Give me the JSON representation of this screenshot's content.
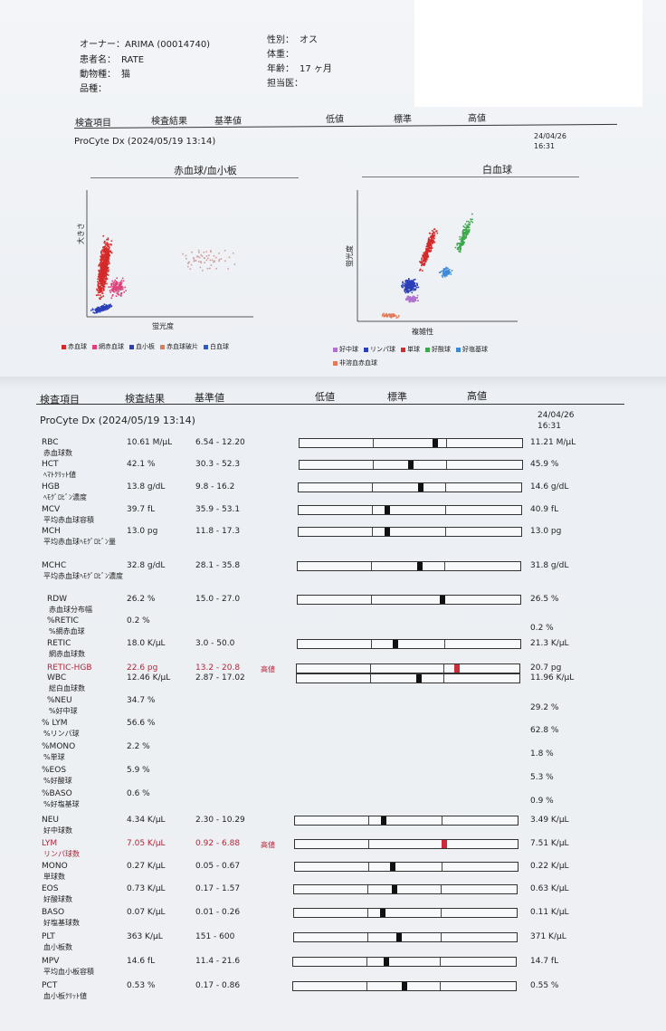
{
  "patient": {
    "owner_label": "オーナー：",
    "owner_value": "ARIMA (00014740)",
    "name_label": "患者名：",
    "name_value": "RATE",
    "species_label": "動物種：",
    "species_value": "猫",
    "breed_label": "品種：",
    "breed_value": "",
    "sex_label": "性別：",
    "sex_value": "オス",
    "weight_label": "体重：",
    "weight_value": "",
    "age_label": "年齢：",
    "age_value": "17 ヶ月",
    "doctor_label": "担当医：",
    "doctor_value": ""
  },
  "header": {
    "col_item": "検査項目",
    "col_result": "検査結果",
    "col_reference": "基準値",
    "col_low": "低値",
    "col_normal": "標準",
    "col_high": "高値",
    "device": "ProCyte Dx (2024/05/19 13:14)",
    "date": "24/04/26",
    "time": "16:31"
  },
  "scatter": {
    "rbc_title": "赤血球/血小板",
    "rbc_ylabel": "大きさ",
    "rbc_xlabel": "蛍光度",
    "wbc_title": "白血球",
    "wbc_ylabel": "蛍光度",
    "wbc_xlabel": "複雑性",
    "rbc_legend": [
      {
        "label": "赤血球",
        "color": "#d42a2a"
      },
      {
        "label": "網赤血球",
        "color": "#e0407a"
      },
      {
        "label": "血小板",
        "color": "#2a3fb8"
      },
      {
        "label": "赤血球破片",
        "color": "#e07a5a"
      },
      {
        "label": "白血球",
        "color": "#2a5ad0"
      }
    ],
    "wbc_legend": [
      {
        "label": "好中球",
        "color": "#b070d0"
      },
      {
        "label": "リンパ球",
        "color": "#2a3fb8"
      },
      {
        "label": "単球",
        "color": "#d42a2a"
      },
      {
        "label": "好酸球",
        "color": "#3aa84a"
      },
      {
        "label": "好塩基球",
        "color": "#3a8ad8"
      },
      {
        "label": "非溶血赤血球",
        "color": "#e07a5a"
      }
    ]
  },
  "results": [
    {
      "code": "RBC",
      "jp": "赤血球数",
      "value": "10.61 M/µL",
      "ref": "6.54 - 12.20",
      "flag": "",
      "bar": true,
      "pos": 0.61,
      "prev": "11.21 M/µL"
    },
    {
      "code": "HCT",
      "jp": "ﾍﾏﾄｸﾘｯﾄ値",
      "value": "42.1 %",
      "ref": "30.3 - 52.3",
      "flag": "",
      "bar": true,
      "pos": 0.5,
      "prev": "45.9 %"
    },
    {
      "code": "HGB",
      "jp": "ﾍﾓｸﾞﾛﾋﾞﾝ濃度",
      "value": "13.8 g/dL",
      "ref": "9.8 - 16.2",
      "flag": "",
      "bar": true,
      "pos": 0.55,
      "prev": "14.6 g/dL"
    },
    {
      "code": "MCV",
      "jp": "平均赤血球容積",
      "value": "39.7 fL",
      "ref": "35.9 - 53.1",
      "flag": "",
      "bar": true,
      "pos": 0.4,
      "prev": "40.9 fL"
    },
    {
      "code": "MCH",
      "jp": "平均赤血球ﾍﾓｸﾞﾛﾋﾞﾝ量",
      "value": "13.0 pg",
      "ref": "11.8 - 17.3",
      "flag": "",
      "bar": true,
      "pos": 0.4,
      "prev": "13.0 pg"
    },
    {
      "code": "MCHC",
      "jp": "平均赤血球ﾍﾓｸﾞﾛﾋﾞﾝ濃度",
      "value": "32.8 g/dL",
      "ref": "28.1 - 35.8",
      "flag": "",
      "bar": true,
      "pos": 0.55,
      "prev": "31.8 g/dL"
    },
    {
      "code": "RDW",
      "jp": "赤血球分布幅",
      "value": "26.2 %",
      "ref": "15.0 - 27.0",
      "flag": "",
      "bar": true,
      "pos": 0.65,
      "prev": "26.5 %"
    },
    {
      "code": "%RETIC",
      "jp": "%網赤血球",
      "value": "0.2 %",
      "ref": "",
      "flag": "",
      "bar": false,
      "pos": 0,
      "prev": "0.2 %"
    },
    {
      "code": "RETIC",
      "jp": "網赤血球数",
      "value": "18.0 K/µL",
      "ref": "3.0 - 50.0",
      "flag": "",
      "bar": true,
      "pos": 0.44,
      "prev": "21.3 K/µL"
    },
    {
      "code": "RETIC-HGB",
      "jp": "",
      "value": "22.6 pg",
      "ref": "13.2 - 20.8",
      "flag": "高値",
      "bar": true,
      "pos": 0.72,
      "prev": "20.7 pg"
    },
    {
      "code": "WBC",
      "jp": "総白血球数",
      "value": "12.46 K/µL",
      "ref": "2.87 - 17.02",
      "flag": "",
      "bar": true,
      "pos": 0.55,
      "prev": "11.96 K/µL"
    },
    {
      "code": "%NEU",
      "jp": "%好中球",
      "value": "34.7 %",
      "ref": "",
      "flag": "",
      "bar": false,
      "pos": 0,
      "prev": "29.2 %"
    },
    {
      "code": "% LYM",
      "jp": "%リンパ球",
      "value": "56.6 %",
      "ref": "",
      "flag": "",
      "bar": false,
      "pos": 0,
      "prev": "62.8 %"
    },
    {
      "code": "%MONO",
      "jp": "%単球",
      "value": "2.2 %",
      "ref": "",
      "flag": "",
      "bar": false,
      "pos": 0,
      "prev": "1.8 %"
    },
    {
      "code": "%EOS",
      "jp": "%好酸球",
      "value": "5.9 %",
      "ref": "",
      "flag": "",
      "bar": false,
      "pos": 0,
      "prev": "5.3 %"
    },
    {
      "code": "%BASO",
      "jp": "%好塩基球",
      "value": "0.6 %",
      "ref": "",
      "flag": "",
      "bar": false,
      "pos": 0,
      "prev": "0.9 %"
    },
    {
      "code": "NEU",
      "jp": "好中球数",
      "value": "4.34 K/µL",
      "ref": "2.30 - 10.29",
      "flag": "",
      "bar": true,
      "pos": 0.4,
      "prev": "3.49 K/µL"
    },
    {
      "code": "LYM",
      "jp": "リンパ球数",
      "value": "7.05 K/µL",
      "ref": "0.92 - 6.88",
      "flag": "高値",
      "bar": true,
      "pos": 0.67,
      "prev": "7.51 K/µL"
    },
    {
      "code": "MONO",
      "jp": "単球数",
      "value": "0.27 K/µL",
      "ref": "0.05 - 0.67",
      "flag": "",
      "bar": true,
      "pos": 0.44,
      "prev": "0.22 K/µL"
    },
    {
      "code": "EOS",
      "jp": "好酸球数",
      "value": "0.73 K/µL",
      "ref": "0.17 - 1.57",
      "flag": "",
      "bar": true,
      "pos": 0.45,
      "prev": "0.63 K/µL"
    },
    {
      "code": "BASO",
      "jp": "好塩基球数",
      "value": "0.07 K/µL",
      "ref": "0.01 - 0.26",
      "flag": "",
      "bar": true,
      "pos": 0.4,
      "prev": "0.11 K/µL"
    },
    {
      "code": "PLT",
      "jp": "血小板数",
      "value": "363 K/µL",
      "ref": "151 - 600",
      "flag": "",
      "bar": true,
      "pos": 0.47,
      "prev": "371 K/µL"
    },
    {
      "code": "MPV",
      "jp": "平均血小板容積",
      "value": "14.6 fL",
      "ref": "11.4 - 21.6",
      "flag": "",
      "bar": true,
      "pos": 0.42,
      "prev": "14.7 fL"
    },
    {
      "code": "PCT",
      "jp": "血小板ｸﾘｯﾄ値",
      "value": "0.53 %",
      "ref": "0.17 - 0.86",
      "flag": "",
      "bar": true,
      "pos": 0.5,
      "prev": "0.55 %"
    }
  ]
}
